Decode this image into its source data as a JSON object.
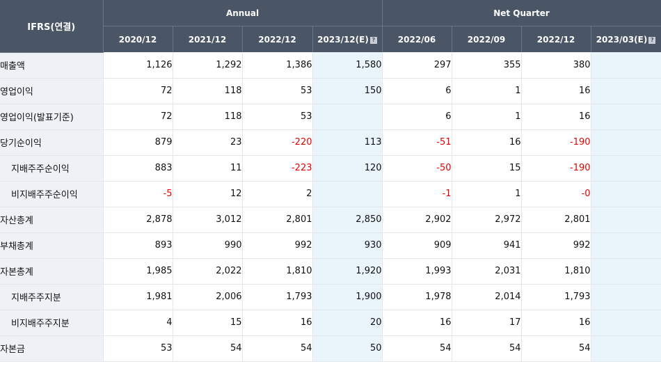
{
  "header": {
    "corner_label": "IFRS(연결)",
    "group_annual": "Annual",
    "group_quarter": "Net Quarter",
    "help_glyph": "?",
    "columns": [
      "2020/12",
      "2021/12",
      "2022/12",
      "2023/12(E)",
      "2022/06",
      "2022/09",
      "2022/12",
      "2023/03(E)"
    ]
  },
  "rows": [
    {
      "label": "매출액",
      "cells": [
        "1,126",
        "1,292",
        "1,386",
        "1,580",
        "297",
        "355",
        "380",
        ""
      ]
    },
    {
      "label": "영업이익",
      "cells": [
        "72",
        "118",
        "53",
        "150",
        "6",
        "1",
        "16",
        ""
      ]
    },
    {
      "label": "영업이익(발표기준)",
      "cells": [
        "72",
        "118",
        "53",
        "",
        "6",
        "1",
        "16",
        ""
      ]
    },
    {
      "label": "당기순이익",
      "cells": [
        "879",
        "23",
        "-220",
        "113",
        "-51",
        "16",
        "-190",
        ""
      ]
    },
    {
      "label": "지배주주순이익",
      "cells": [
        "883",
        "11",
        "-223",
        "120",
        "-50",
        "15",
        "-190",
        ""
      ]
    },
    {
      "label": "비지배주주순이익",
      "cells": [
        "-5",
        "12",
        "2",
        "",
        "-1",
        "1",
        "-0",
        ""
      ]
    },
    {
      "label": "자산총계",
      "cells": [
        "2,878",
        "3,012",
        "2,801",
        "2,850",
        "2,902",
        "2,972",
        "2,801",
        ""
      ]
    },
    {
      "label": "부채총계",
      "cells": [
        "893",
        "990",
        "992",
        "930",
        "909",
        "941",
        "992",
        ""
      ]
    },
    {
      "label": "자본총계",
      "cells": [
        "1,985",
        "2,022",
        "1,810",
        "1,920",
        "1,993",
        "2,031",
        "1,810",
        ""
      ]
    },
    {
      "label": "지배주주지분",
      "cells": [
        "1,981",
        "2,006",
        "1,793",
        "1,900",
        "1,978",
        "2,014",
        "1,793",
        ""
      ]
    },
    {
      "label": "비지배주주지분",
      "cells": [
        "4",
        "15",
        "16",
        "20",
        "16",
        "17",
        "16",
        ""
      ]
    },
    {
      "label": "자본금",
      "cells": [
        "53",
        "54",
        "54",
        "50",
        "54",
        "54",
        "54",
        ""
      ]
    }
  ],
  "colors": {
    "header_bg": "#4a5565",
    "estimate_col_bg": "#e9f4fb",
    "negative": "#e60000",
    "label_bg": "#eef1f5"
  }
}
